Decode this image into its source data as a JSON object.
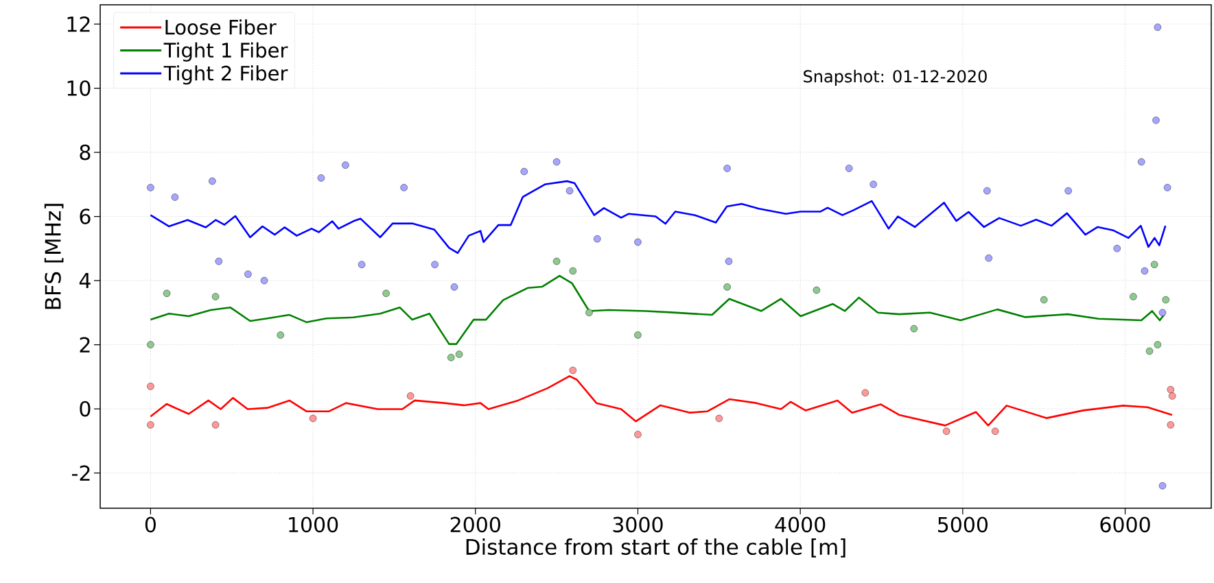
{
  "chart_data": {
    "type": "line",
    "xlabel": "Distance from start of the cable [m]",
    "ylabel": "BFS [MHz]",
    "annotations": [
      "Snapshot: 01-12-2020"
    ],
    "xlim": [
      -310,
      6530
    ],
    "ylim": [
      -3.1,
      12.6
    ],
    "xticks": [
      0,
      1000,
      2000,
      3000,
      4000,
      5000,
      6000
    ],
    "yticks": [
      -2,
      0,
      2,
      4,
      6,
      8,
      10,
      12
    ],
    "grid": true,
    "legend": "top left",
    "series": [
      {
        "name": "Loose Fiber",
        "color": "#ff0000",
        "x": [
          0,
          99,
          235,
          356,
          432,
          507,
          598,
          719,
          855,
          961,
          1097,
          1203,
          1399,
          1550,
          1626,
          1808,
          1929,
          2031,
          2080,
          2262,
          2443,
          2579,
          2624,
          2745,
          2897,
          2987,
          3139,
          3321,
          3427,
          3563,
          3729,
          3881,
          3941,
          4032,
          4229,
          4319,
          4496,
          4609,
          4892,
          5081,
          5157,
          5270,
          5515,
          5742,
          5987,
          6138,
          6289
        ],
        "values": [
          -0.24,
          0.15,
          -0.16,
          0.26,
          -0.01,
          0.34,
          -0.01,
          0.03,
          0.26,
          -0.08,
          -0.08,
          0.18,
          -0.01,
          -0.01,
          0.26,
          0.18,
          0.11,
          0.18,
          -0.01,
          0.26,
          0.64,
          1.02,
          0.91,
          0.18,
          -0.01,
          -0.39,
          0.11,
          -0.12,
          -0.08,
          0.3,
          0.18,
          -0.01,
          0.22,
          -0.05,
          0.26,
          -0.12,
          0.14,
          -0.19,
          -0.52,
          -0.1,
          -0.52,
          0.1,
          -0.29,
          -0.05,
          0.1,
          0.05,
          -0.19
        ]
      },
      {
        "name": "Tight 1 Fiber",
        "color": "#008000",
        "x": [
          0,
          114,
          235,
          371,
          492,
          613,
          719,
          855,
          961,
          1082,
          1248,
          1414,
          1535,
          1611,
          1717,
          1838,
          1883,
          1989,
          2065,
          2170,
          2322,
          2412,
          2518,
          2594,
          2700,
          2821,
          3048,
          3200,
          3457,
          3563,
          3760,
          3881,
          4002,
          4199,
          4274,
          4361,
          4477,
          4609,
          4798,
          4987,
          5213,
          5383,
          5647,
          5836,
          6100,
          6166,
          6213,
          6242
        ],
        "values": [
          2.78,
          2.97,
          2.89,
          3.08,
          3.16,
          2.74,
          2.82,
          2.93,
          2.7,
          2.82,
          2.85,
          2.97,
          3.16,
          2.78,
          2.97,
          2.02,
          2.02,
          2.78,
          2.78,
          3.39,
          3.77,
          3.81,
          4.15,
          3.92,
          3.05,
          3.08,
          3.05,
          3.01,
          2.93,
          3.43,
          3.05,
          3.43,
          2.89,
          3.27,
          3.05,
          3.47,
          3.0,
          2.95,
          3.0,
          2.76,
          3.1,
          2.86,
          2.95,
          2.81,
          2.76,
          3.05,
          2.76,
          2.95
        ]
      },
      {
        "name": "Tight 2 Fiber",
        "color": "#0000ff",
        "x": [
          0,
          114,
          228,
          340,
          401,
          454,
          522,
          613,
          689,
          764,
          825,
          900,
          991,
          1036,
          1119,
          1157,
          1248,
          1293,
          1414,
          1490,
          1611,
          1747,
          1838,
          1891,
          1959,
          2031,
          2050,
          2141,
          2217,
          2292,
          2428,
          2564,
          2610,
          2731,
          2791,
          2897,
          2942,
          3109,
          3170,
          3230,
          3351,
          3480,
          3548,
          3639,
          3745,
          3911,
          4002,
          4123,
          4168,
          4259,
          4326,
          4440,
          4544,
          4601,
          4705,
          4885,
          4960,
          5036,
          5131,
          5225,
          5358,
          5452,
          5547,
          5642,
          5755,
          5831,
          5925,
          6020,
          6096,
          6143,
          6181,
          6210,
          6248
        ],
        "values": [
          6.04,
          5.69,
          5.89,
          5.66,
          5.89,
          5.74,
          6.01,
          5.35,
          5.69,
          5.43,
          5.66,
          5.4,
          5.62,
          5.51,
          5.85,
          5.62,
          5.85,
          5.93,
          5.35,
          5.78,
          5.78,
          5.59,
          5.02,
          4.86,
          5.4,
          5.55,
          5.2,
          5.73,
          5.73,
          6.61,
          7.0,
          7.1,
          7.04,
          6.04,
          6.26,
          5.96,
          6.08,
          6.0,
          5.77,
          6.15,
          6.04,
          5.81,
          6.31,
          6.39,
          6.24,
          6.08,
          6.15,
          6.15,
          6.27,
          6.04,
          6.19,
          6.48,
          5.62,
          6.0,
          5.67,
          6.43,
          5.86,
          6.14,
          5.67,
          5.95,
          5.71,
          5.9,
          5.71,
          6.1,
          5.43,
          5.67,
          5.57,
          5.33,
          5.71,
          5.05,
          5.33,
          5.1,
          5.71
        ]
      },
      {
        "type": "scatter",
        "marker": "circle",
        "color": "#ff9999",
        "x": [
          0,
          0,
          400,
          1000,
          1600,
          2600,
          3000,
          3500,
          4400,
          4900,
          5200,
          6280,
          6290,
          6280
        ],
        "values": [
          -0.5,
          0.7,
          -0.5,
          -0.3,
          0.4,
          1.2,
          -0.8,
          -0.3,
          0.5,
          -0.7,
          -0.7,
          0.6,
          0.4,
          -0.5
        ]
      },
      {
        "type": "scatter",
        "marker": "circle",
        "color": "#8fc98f",
        "x": [
          0,
          100,
          400,
          800,
          1450,
          1850,
          1900,
          2500,
          2600,
          2700,
          3000,
          3550,
          4100,
          4700,
          5500,
          6050,
          6150,
          6180,
          6200,
          6250
        ],
        "values": [
          2.0,
          3.6,
          3.5,
          2.3,
          3.6,
          1.6,
          1.7,
          4.6,
          4.3,
          3.0,
          2.3,
          3.8,
          3.7,
          2.5,
          3.4,
          3.5,
          1.8,
          4.5,
          2.0,
          3.4
        ]
      },
      {
        "type": "scatter",
        "marker": "circle",
        "color": "#a6a6ff",
        "x": [
          0,
          150,
          380,
          420,
          600,
          700,
          1050,
          1200,
          1300,
          1560,
          1750,
          1870,
          2300,
          2500,
          2580,
          2750,
          3000,
          3550,
          3560,
          4300,
          4450,
          5150,
          5160,
          5650,
          5950,
          6100,
          6120,
          6190,
          6200,
          6230,
          6230,
          6260
        ],
        "values": [
          6.9,
          6.6,
          7.1,
          4.6,
          4.2,
          4.0,
          7.2,
          7.6,
          4.5,
          6.9,
          4.5,
          3.8,
          7.4,
          7.7,
          6.8,
          5.3,
          5.2,
          7.5,
          4.6,
          7.5,
          7.0,
          6.8,
          4.7,
          6.8,
          5.0,
          7.7,
          4.3,
          9.0,
          11.9,
          3.0,
          -2.4,
          6.9
        ]
      }
    ]
  }
}
